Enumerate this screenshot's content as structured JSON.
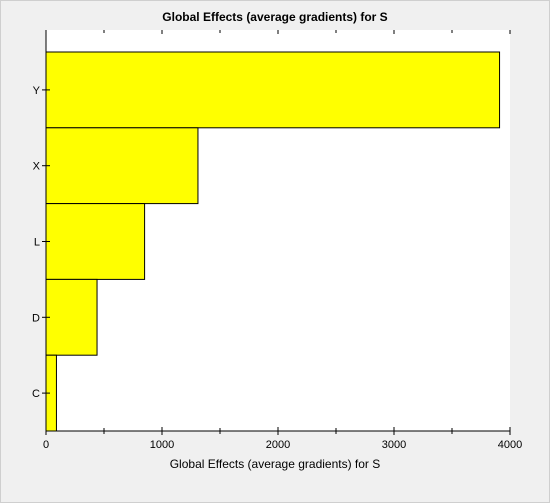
{
  "chart_data": {
    "type": "bar",
    "orientation": "horizontal",
    "title": "Global Effects (average gradients) for S",
    "xlabel": "Global Effects (average gradients) for S",
    "ylabel": "",
    "categories": [
      "Y",
      "X",
      "L",
      "D",
      "C"
    ],
    "values": [
      3910,
      1310,
      850,
      440,
      90
    ],
    "xlim": [
      0,
      4000
    ],
    "xticks": [
      "0",
      "1000",
      "2000",
      "3000",
      "4000"
    ],
    "grid": false,
    "legend": "none",
    "colors": {
      "bar": "#ffff00",
      "bar_stroke": "#000000",
      "plot_bg": "#ffffff",
      "frame_bg": "#f0f0f0"
    }
  }
}
